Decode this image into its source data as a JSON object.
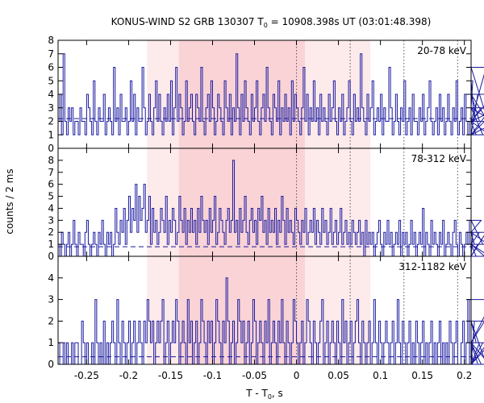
{
  "chart_data": {
    "type": "line",
    "title_prefix": "KONUS-WIND S2 GRB 130307 T",
    "title_sub": "0",
    "title_suffix": " = 10908.398s UT (03:01:48.398)",
    "ylabel": "counts / 2 ms",
    "xlabel_prefix": "T - T",
    "xlabel_sub": "0",
    "xlabel_suffix": ", s",
    "xlim": [
      -0.284,
      0.208
    ],
    "xticks": [
      -0.25,
      -0.2,
      -0.15,
      -0.1,
      -0.05,
      0,
      0.05,
      0.1,
      0.15,
      0.2
    ],
    "xtick_labels": [
      "-0.25",
      "-0.2",
      "-0.15",
      "-0.1",
      "-0.05",
      "0",
      "0.05",
      "0.1",
      "0.15",
      "0.2"
    ],
    "bin_width": 0.002,
    "shaded_regions": [
      {
        "from": -0.178,
        "to": 0.088,
        "color": "#fdeaea"
      },
      {
        "from": -0.14,
        "to": 0.01,
        "color": "#f9d3d6"
      }
    ],
    "vlines": [
      0,
      0.064,
      0.128,
      0.192
    ],
    "colors": {
      "series": "#1a1aa0",
      "background_line": "#1a1aa0",
      "vline": "#555555"
    },
    "panels": [
      {
        "name": "20-78 keV",
        "ylim": [
          0,
          8
        ],
        "yticks": [
          0,
          1,
          2,
          3,
          4,
          5,
          6,
          7,
          8
        ],
        "background": 2.2,
        "values": [
          2,
          4,
          1,
          7,
          2,
          1,
          3,
          2,
          3,
          1,
          2,
          2,
          1,
          3,
          2,
          2,
          1,
          4,
          3,
          2,
          1,
          5,
          2,
          1,
          3,
          2,
          2,
          4,
          1,
          2,
          3,
          2,
          1,
          6,
          2,
          3,
          1,
          4,
          2,
          2,
          3,
          1,
          2,
          5,
          2,
          4,
          1,
          3,
          2,
          2,
          6,
          3,
          1,
          2,
          4,
          2,
          1,
          3,
          5,
          2,
          4,
          2,
          1,
          3,
          2,
          4,
          2,
          5,
          1,
          3,
          6,
          2,
          4,
          3,
          1,
          2,
          5,
          2,
          3,
          4,
          2,
          1,
          4,
          3,
          2,
          6,
          2,
          1,
          3,
          4,
          2,
          5,
          3,
          1,
          2,
          4,
          3,
          2,
          1,
          5,
          3,
          2,
          4,
          1,
          3,
          2,
          7,
          3,
          1,
          4,
          2,
          5,
          3,
          2,
          1,
          4,
          2,
          3,
          5,
          2,
          1,
          3,
          4,
          2,
          6,
          3,
          2,
          1,
          4,
          3,
          2,
          5,
          1,
          3,
          2,
          4,
          2,
          3,
          1,
          5,
          2,
          4,
          3,
          2,
          1,
          3,
          6,
          2,
          4,
          1,
          3,
          2,
          5,
          2,
          3,
          1,
          4,
          2,
          3,
          2,
          1,
          4,
          2,
          3,
          5,
          2,
          1,
          3,
          2,
          4,
          1,
          2,
          3,
          5,
          2,
          1,
          4,
          2,
          3,
          2,
          7,
          3,
          2,
          1,
          4,
          2,
          3,
          5,
          1,
          2,
          3,
          2,
          4,
          1,
          3,
          2,
          2,
          6,
          3,
          1,
          2,
          4,
          2,
          1,
          3,
          2,
          5,
          1,
          2,
          3,
          1,
          4,
          2,
          2,
          1,
          3,
          2,
          4,
          1,
          2,
          3,
          5,
          2,
          1,
          2,
          3,
          1,
          4,
          2,
          3,
          1,
          2,
          4,
          2,
          1,
          3,
          2,
          5,
          1,
          2,
          3,
          1,
          4,
          2,
          1,
          2,
          3,
          5,
          2,
          1,
          4,
          2,
          3,
          1,
          2,
          6,
          2,
          1,
          3,
          2,
          4,
          1,
          2,
          3
        ]
      },
      {
        "name": "78-312 keV",
        "ylim": [
          0,
          9
        ],
        "yticks": [
          0,
          1,
          2,
          3,
          4,
          5,
          6,
          7,
          8
        ],
        "background": 0.8,
        "values": [
          1,
          0,
          2,
          1,
          0,
          1,
          2,
          0,
          1,
          3,
          1,
          0,
          2,
          1,
          1,
          0,
          2,
          3,
          1,
          0,
          1,
          2,
          1,
          0,
          2,
          1,
          3,
          1,
          0,
          2,
          1,
          2,
          0,
          1,
          4,
          2,
          1,
          3,
          2,
          4,
          1,
          3,
          5,
          2,
          4,
          3,
          6,
          2,
          5,
          3,
          4,
          6,
          2,
          3,
          5,
          1,
          4,
          2,
          3,
          1,
          2,
          4,
          3,
          2,
          5,
          1,
          3,
          2,
          4,
          3,
          1,
          2,
          5,
          3,
          2,
          4,
          1,
          3,
          2,
          4,
          2,
          3,
          1,
          4,
          2,
          5,
          3,
          2,
          3,
          1,
          4,
          2,
          3,
          5,
          1,
          2,
          4,
          3,
          2,
          1,
          3,
          4,
          2,
          3,
          8,
          2,
          3,
          1,
          4,
          2,
          3,
          5,
          2,
          1,
          3,
          4,
          2,
          3,
          1,
          4,
          3,
          5,
          2,
          3,
          1,
          4,
          2,
          3,
          2,
          4,
          1,
          3,
          2,
          5,
          3,
          1,
          4,
          2,
          3,
          2,
          1,
          4,
          3,
          2,
          1,
          3,
          2,
          4,
          1,
          2,
          3,
          2,
          4,
          1,
          3,
          2,
          1,
          4,
          2,
          3,
          1,
          2,
          4,
          1,
          2,
          3,
          1,
          2,
          4,
          1,
          2,
          3,
          1,
          2,
          1,
          3,
          2,
          1,
          2,
          3,
          1,
          2,
          0,
          3,
          1,
          2,
          1,
          2,
          0,
          1,
          2,
          3,
          1,
          0,
          2,
          1,
          3,
          1,
          2,
          0,
          1,
          2,
          1,
          3,
          0,
          2,
          1,
          2,
          0,
          1,
          3,
          1,
          2,
          0,
          1,
          2,
          1,
          4,
          0,
          2,
          1,
          0,
          3,
          1,
          2,
          1,
          0,
          2,
          1,
          3,
          0,
          1,
          2,
          1,
          0,
          2,
          3,
          1,
          0,
          2,
          1,
          0,
          1,
          2,
          1,
          3,
          0,
          2,
          1,
          0,
          1,
          2,
          3,
          1,
          0,
          2,
          1,
          0
        ]
      },
      {
        "name": "312-1182 keV",
        "ylim": [
          0,
          5
        ],
        "yticks": [
          0,
          1,
          2,
          3,
          4
        ],
        "background": 0.35,
        "values": [
          1,
          0,
          0,
          1,
          0,
          1,
          0,
          0,
          1,
          0,
          1,
          1,
          0,
          0,
          2,
          1,
          0,
          1,
          0,
          0,
          1,
          0,
          3,
          1,
          0,
          1,
          0,
          2,
          0,
          1,
          0,
          1,
          2,
          1,
          0,
          3,
          1,
          0,
          2,
          1,
          0,
          1,
          2,
          0,
          1,
          2,
          0,
          1,
          2,
          1,
          0,
          2,
          1,
          3,
          2,
          1,
          2,
          0,
          1,
          2,
          1,
          2,
          3,
          0,
          1,
          2,
          0,
          1,
          2,
          1,
          3,
          2,
          0,
          1,
          2,
          1,
          0,
          3,
          1,
          2,
          0,
          1,
          2,
          0,
          1,
          3,
          2,
          1,
          0,
          2,
          1,
          2,
          0,
          1,
          3,
          2,
          1,
          0,
          2,
          1,
          4,
          2,
          0,
          1,
          2,
          0,
          1,
          3,
          2,
          1,
          2,
          0,
          1,
          2,
          0,
          1,
          3,
          2,
          0,
          1,
          2,
          1,
          0,
          2,
          1,
          3,
          0,
          1,
          2,
          1,
          0,
          2,
          1,
          3,
          1,
          0,
          2,
          1,
          0,
          1,
          3,
          2,
          1,
          0,
          1,
          2,
          0,
          1,
          3,
          2,
          1,
          0,
          2,
          1,
          0,
          1,
          2,
          3,
          0,
          1,
          2,
          0,
          1,
          2,
          1,
          0,
          2,
          1,
          0,
          3,
          1,
          2,
          0,
          1,
          2,
          0,
          1,
          2,
          3,
          1,
          0,
          2,
          1,
          0,
          1,
          2,
          0,
          1,
          3,
          1,
          0,
          2,
          1,
          0,
          1,
          2,
          1,
          0,
          1,
          2,
          0,
          1,
          3,
          1,
          0,
          2,
          1,
          0,
          1,
          2,
          0,
          1,
          0,
          2,
          1,
          0,
          1,
          2,
          0,
          1,
          0,
          1,
          2,
          0,
          1,
          0,
          1,
          2,
          0,
          1,
          0,
          1,
          0,
          2,
          1,
          0,
          1,
          2,
          0,
          0,
          1,
          2,
          0,
          1,
          3,
          0,
          1,
          0,
          2,
          1,
          0,
          1,
          0,
          1,
          2,
          0,
          1,
          0,
          1,
          3
        ]
      }
    ]
  }
}
